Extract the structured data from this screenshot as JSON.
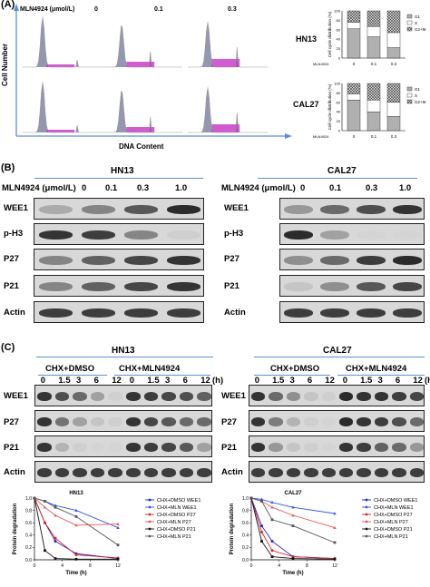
{
  "panelA": {
    "label": "(A)",
    "conc_title": "MLN4924 (μmol/L)",
    "concs": [
      "0",
      "0.1",
      "0.3"
    ],
    "y_axis": "Cell Number",
    "x_axis": "DNA Content",
    "cell_lines": [
      "HN13",
      "CAL27"
    ],
    "bar_ylabel": "Cell cycle distribution (%)",
    "bar_xlabel": "MLN4924",
    "bar_categories": [
      "0",
      "0.1",
      "0.3"
    ],
    "bar_yticks": [
      "0",
      "20",
      "40",
      "60",
      "80",
      "100"
    ],
    "bar_legend": [
      "G1",
      "S",
      "G2+M"
    ]
  },
  "panelB": {
    "label": "(B)",
    "cell_lines": [
      "HN13",
      "CAL27"
    ],
    "conc_title": "MLN4924 (μmol/L)",
    "concs": [
      "0",
      "0.1",
      "0.3",
      "1.0"
    ],
    "rows": [
      "WEE1",
      "p-H3",
      "P27",
      "P21",
      "Actin"
    ]
  },
  "panelC": {
    "label": "(C)",
    "cell_lines": [
      "HN13",
      "CAL27"
    ],
    "groups": [
      "CHX+DMSO",
      "CHX+MLN4924"
    ],
    "times": [
      "0",
      "1.5",
      "3",
      "6",
      "12"
    ],
    "unit": "(h)",
    "rows": [
      "WEE1",
      "P27",
      "P21",
      "Actin"
    ]
  },
  "chart_data": [
    {
      "type": "bar",
      "title": "HN13",
      "categories": [
        "0",
        "0.1",
        "0.3"
      ],
      "xlabel": "MLN4924",
      "ylabel": "Cell cycle distribution (%)",
      "ylim": [
        0,
        100
      ],
      "series": [
        {
          "name": "G1",
          "values": [
            62,
            45,
            22
          ]
        },
        {
          "name": "S",
          "values": [
            14,
            22,
            32
          ]
        },
        {
          "name": "G2+M",
          "values": [
            24,
            33,
            46
          ]
        }
      ]
    },
    {
      "type": "bar",
      "title": "CAL27",
      "categories": [
        "0",
        "0.1",
        "0.3"
      ],
      "xlabel": "MLN4924",
      "ylabel": "Cell cycle distribution (%)",
      "ylim": [
        0,
        100
      ],
      "series": [
        {
          "name": "G1",
          "values": [
            65,
            40,
            30
          ]
        },
        {
          "name": "S",
          "values": [
            13,
            25,
            30
          ]
        },
        {
          "name": "G2+M",
          "values": [
            22,
            35,
            40
          ]
        }
      ]
    },
    {
      "type": "line",
      "title": "HN13",
      "xlabel": "Time (h)",
      "ylabel": "Protein degradation",
      "xlim": [
        0,
        12
      ],
      "ylim": [
        0,
        1.0
      ],
      "xticks": [
        "0",
        "4",
        "8",
        "12"
      ],
      "yticks": [
        "0.0",
        "0.2",
        "0.4",
        "0.6",
        "0.8",
        "1.0"
      ],
      "x": [
        0,
        1.5,
        3,
        6,
        12
      ],
      "series": [
        {
          "name": "CHX+DMSO WEE1",
          "color": "#2222cc",
          "values": [
            1.0,
            0.6,
            0.3,
            0.1,
            0.02
          ]
        },
        {
          "name": "CHX+MLN WEE1",
          "color": "#3355ee",
          "values": [
            1.0,
            0.95,
            0.88,
            0.8,
            0.52
          ]
        },
        {
          "name": "CHX+DMSO P27",
          "color": "#dd2222",
          "values": [
            1.0,
            0.6,
            0.35,
            0.08,
            0.03
          ]
        },
        {
          "name": "CHX+MLN P27",
          "color": "#ee5555",
          "values": [
            1.0,
            0.85,
            0.72,
            0.56,
            0.58
          ]
        },
        {
          "name": "CHX+DMSO P21",
          "color": "#111111",
          "values": [
            1.0,
            0.15,
            0.02,
            0.01,
            0.01
          ]
        },
        {
          "name": "CHX+MLN P21",
          "color": "#555555",
          "values": [
            1.0,
            0.95,
            0.85,
            0.7,
            0.24
          ]
        }
      ]
    },
    {
      "type": "line",
      "title": "CAL27",
      "xlabel": "Time (h)",
      "ylabel": "Protein degradation",
      "xlim": [
        0,
        12
      ],
      "ylim": [
        0,
        1.0
      ],
      "xticks": [
        "0",
        "4",
        "8",
        "12"
      ],
      "yticks": [
        "0.0",
        "0.2",
        "0.4",
        "0.6",
        "0.8",
        "1.0"
      ],
      "x": [
        0,
        1.5,
        3,
        6,
        12
      ],
      "series": [
        {
          "name": "CHX+DMSO WEE1",
          "color": "#2222cc",
          "values": [
            1.0,
            0.55,
            0.3,
            0.05,
            0.02
          ]
        },
        {
          "name": "CHX+MLN WEE1",
          "color": "#3355ee",
          "values": [
            1.0,
            0.98,
            0.93,
            0.85,
            0.75
          ]
        },
        {
          "name": "CHX+DMSO P27",
          "color": "#dd2222",
          "values": [
            1.0,
            0.45,
            0.15,
            0.05,
            0.02
          ]
        },
        {
          "name": "CHX+MLN P27",
          "color": "#ee5555",
          "values": [
            1.0,
            0.95,
            0.85,
            0.72,
            0.52
          ]
        },
        {
          "name": "CHX+DMSO P21",
          "color": "#111111",
          "values": [
            1.0,
            0.3,
            0.05,
            0.02,
            0.01
          ]
        },
        {
          "name": "CHX+MLN P21",
          "color": "#555555",
          "values": [
            1.0,
            0.95,
            0.65,
            0.55,
            0.28
          ]
        }
      ]
    }
  ]
}
